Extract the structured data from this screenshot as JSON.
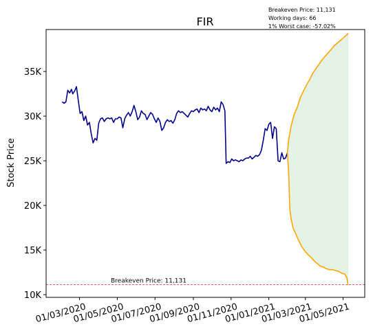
{
  "chart_data": {
    "type": "line",
    "title": "FIR",
    "xlabel": "",
    "ylabel": "Stock Price",
    "x_range": [
      "2020-01-07",
      "2021-06-05"
    ],
    "ylim": [
      9700,
      39700
    ],
    "yticks": [
      10000,
      15000,
      20000,
      25000,
      30000,
      35000
    ],
    "ytick_labels": [
      "10K",
      "15K",
      "20K",
      "25K",
      "30K",
      "35K"
    ],
    "xticks": [
      "2020-03-01",
      "2020-05-01",
      "2020-07-01",
      "2020-09-01",
      "2020-11-01",
      "2021-01-01",
      "2021-03-01",
      "2021-05-01"
    ],
    "xtick_labels": [
      "01/03/2020",
      "01/05/2020",
      "01/07/2020",
      "01/09/2020",
      "01/11/2020",
      "01/01/2021",
      "01/03/2021",
      "01/05/2021"
    ],
    "info_lines": [
      "Breakeven Price: 11,131",
      "Working days: 66",
      "1% Worst case: -57.02%"
    ],
    "breakeven": {
      "value": 11131,
      "label": "Breakeven Price: 11,131",
      "color": "#d62728"
    },
    "series": [
      {
        "color": "#00008b",
        "points": [
          [
            "2020-02-02",
            31600
          ],
          [
            "2020-02-05",
            31450
          ],
          [
            "2020-02-08",
            31600
          ],
          [
            "2020-02-11",
            32900
          ],
          [
            "2020-02-14",
            32600
          ],
          [
            "2020-02-17",
            33000
          ],
          [
            "2020-02-19",
            32500
          ],
          [
            "2020-02-22",
            32800
          ],
          [
            "2020-02-25",
            33300
          ],
          [
            "2020-02-28",
            31800
          ],
          [
            "2020-03-02",
            30300
          ],
          [
            "2020-03-05",
            30500
          ],
          [
            "2020-03-08",
            29500
          ],
          [
            "2020-03-11",
            30000
          ],
          [
            "2020-03-14",
            29000
          ],
          [
            "2020-03-17",
            29300
          ],
          [
            "2020-03-20",
            28000
          ],
          [
            "2020-03-23",
            27000
          ],
          [
            "2020-03-26",
            27500
          ],
          [
            "2020-03-29",
            27300
          ],
          [
            "2020-04-01",
            29200
          ],
          [
            "2020-04-04",
            29700
          ],
          [
            "2020-04-07",
            29800
          ],
          [
            "2020-04-10",
            29400
          ],
          [
            "2020-04-13",
            29700
          ],
          [
            "2020-04-16",
            29800
          ],
          [
            "2020-04-19",
            29700
          ],
          [
            "2020-04-22",
            29800
          ],
          [
            "2020-04-25",
            29300
          ],
          [
            "2020-04-28",
            29700
          ],
          [
            "2020-05-01",
            29700
          ],
          [
            "2020-05-04",
            29900
          ],
          [
            "2020-05-07",
            29800
          ],
          [
            "2020-05-10",
            28700
          ],
          [
            "2020-05-13",
            29700
          ],
          [
            "2020-05-16",
            30100
          ],
          [
            "2020-05-19",
            30400
          ],
          [
            "2020-05-22",
            30000
          ],
          [
            "2020-05-25",
            30500
          ],
          [
            "2020-05-28",
            31200
          ],
          [
            "2020-05-31",
            30500
          ],
          [
            "2020-06-03",
            29600
          ],
          [
            "2020-06-06",
            29900
          ],
          [
            "2020-06-09",
            30600
          ],
          [
            "2020-06-12",
            30300
          ],
          [
            "2020-06-15",
            30200
          ],
          [
            "2020-06-18",
            29600
          ],
          [
            "2020-06-21",
            30000
          ],
          [
            "2020-06-24",
            30400
          ],
          [
            "2020-06-27",
            30200
          ],
          [
            "2020-06-30",
            29700
          ],
          [
            "2020-07-03",
            29300
          ],
          [
            "2020-07-06",
            29800
          ],
          [
            "2020-07-09",
            29400
          ],
          [
            "2020-07-12",
            28400
          ],
          [
            "2020-07-15",
            28700
          ],
          [
            "2020-07-18",
            29300
          ],
          [
            "2020-07-21",
            29600
          ],
          [
            "2020-07-24",
            29400
          ],
          [
            "2020-07-27",
            29500
          ],
          [
            "2020-07-30",
            29200
          ],
          [
            "2020-08-02",
            29600
          ],
          [
            "2020-08-05",
            30300
          ],
          [
            "2020-08-08",
            30600
          ],
          [
            "2020-08-11",
            30400
          ],
          [
            "2020-08-14",
            30500
          ],
          [
            "2020-08-17",
            30300
          ],
          [
            "2020-08-20",
            30100
          ],
          [
            "2020-08-23",
            29900
          ],
          [
            "2020-08-26",
            30300
          ],
          [
            "2020-08-29",
            30600
          ],
          [
            "2020-09-01",
            30500
          ],
          [
            "2020-09-04",
            30700
          ],
          [
            "2020-09-07",
            30800
          ],
          [
            "2020-09-10",
            30400
          ],
          [
            "2020-09-13",
            30900
          ],
          [
            "2020-09-16",
            30700
          ],
          [
            "2020-09-19",
            30800
          ],
          [
            "2020-09-22",
            30600
          ],
          [
            "2020-09-25",
            31100
          ],
          [
            "2020-09-28",
            30700
          ],
          [
            "2020-10-01",
            30500
          ],
          [
            "2020-10-04",
            31000
          ],
          [
            "2020-10-07",
            30700
          ],
          [
            "2020-10-10",
            30900
          ],
          [
            "2020-10-13",
            30500
          ],
          [
            "2020-10-16",
            31600
          ],
          [
            "2020-10-19",
            31300
          ],
          [
            "2020-10-22",
            30600
          ],
          [
            "2020-10-24",
            24700
          ],
          [
            "2020-10-27",
            24900
          ],
          [
            "2020-10-30",
            24800
          ],
          [
            "2020-11-02",
            25200
          ],
          [
            "2020-11-05",
            25000
          ],
          [
            "2020-11-08",
            25100
          ],
          [
            "2020-11-11",
            25000
          ],
          [
            "2020-11-14",
            24900
          ],
          [
            "2020-11-17",
            25100
          ],
          [
            "2020-11-20",
            25000
          ],
          [
            "2020-11-23",
            25200
          ],
          [
            "2020-11-26",
            25300
          ],
          [
            "2020-11-29",
            25300
          ],
          [
            "2020-12-02",
            25500
          ],
          [
            "2020-12-05",
            25200
          ],
          [
            "2020-12-08",
            25400
          ],
          [
            "2020-12-11",
            25600
          ],
          [
            "2020-12-14",
            25500
          ],
          [
            "2020-12-17",
            25700
          ],
          [
            "2020-12-20",
            26200
          ],
          [
            "2020-12-23",
            27300
          ],
          [
            "2020-12-26",
            28600
          ],
          [
            "2020-12-29",
            28400
          ],
          [
            "2021-01-01",
            29100
          ],
          [
            "2021-01-04",
            29300
          ],
          [
            "2021-01-07",
            27500
          ],
          [
            "2021-01-10",
            28800
          ],
          [
            "2021-01-13",
            28600
          ],
          [
            "2021-01-16",
            25000
          ],
          [
            "2021-01-19",
            24900
          ],
          [
            "2021-01-22",
            25900
          ],
          [
            "2021-01-25",
            25200
          ],
          [
            "2021-01-28",
            25300
          ],
          [
            "2021-01-31",
            25900
          ]
        ]
      },
      {
        "color": "#ffa500",
        "points": [
          [
            "2021-01-31",
            25900
          ],
          [
            "2021-02-02",
            27300
          ],
          [
            "2021-02-06",
            28900
          ],
          [
            "2021-02-11",
            30200
          ],
          [
            "2021-02-16",
            31000
          ],
          [
            "2021-02-21",
            32100
          ],
          [
            "2021-02-26",
            32800
          ],
          [
            "2021-03-03",
            33500
          ],
          [
            "2021-03-08",
            34100
          ],
          [
            "2021-03-13",
            34800
          ],
          [
            "2021-03-18",
            35300
          ],
          [
            "2021-03-23",
            35800
          ],
          [
            "2021-03-28",
            36300
          ],
          [
            "2021-04-02",
            36700
          ],
          [
            "2021-04-07",
            37100
          ],
          [
            "2021-04-12",
            37500
          ],
          [
            "2021-04-17",
            37900
          ],
          [
            "2021-04-22",
            38200
          ],
          [
            "2021-04-27",
            38500
          ],
          [
            "2021-05-02",
            38800
          ],
          [
            "2021-05-07",
            39100
          ],
          [
            "2021-05-09",
            39300
          ]
        ]
      },
      {
        "color": "#ffa500",
        "points": [
          [
            "2021-01-31",
            25900
          ],
          [
            "2021-02-02",
            23700
          ],
          [
            "2021-02-04",
            19500
          ],
          [
            "2021-02-06",
            18500
          ],
          [
            "2021-02-09",
            17500
          ],
          [
            "2021-02-13",
            16900
          ],
          [
            "2021-02-18",
            16100
          ],
          [
            "2021-02-23",
            15400
          ],
          [
            "2021-02-28",
            14900
          ],
          [
            "2021-03-05",
            14500
          ],
          [
            "2021-03-10",
            14200
          ],
          [
            "2021-03-15",
            13800
          ],
          [
            "2021-03-20",
            13500
          ],
          [
            "2021-03-25",
            13200
          ],
          [
            "2021-03-30",
            13100
          ],
          [
            "2021-04-04",
            12900
          ],
          [
            "2021-04-09",
            12800
          ],
          [
            "2021-04-14",
            12800
          ],
          [
            "2021-04-19",
            12700
          ],
          [
            "2021-04-24",
            12600
          ],
          [
            "2021-04-29",
            12400
          ],
          [
            "2021-05-04",
            12300
          ],
          [
            "2021-05-07",
            11900
          ],
          [
            "2021-05-09",
            11100
          ]
        ]
      }
    ],
    "band": {
      "color": "#c8e6c9",
      "between": "upper and lower forecast lines"
    },
    "grid": false,
    "legend": "none"
  }
}
